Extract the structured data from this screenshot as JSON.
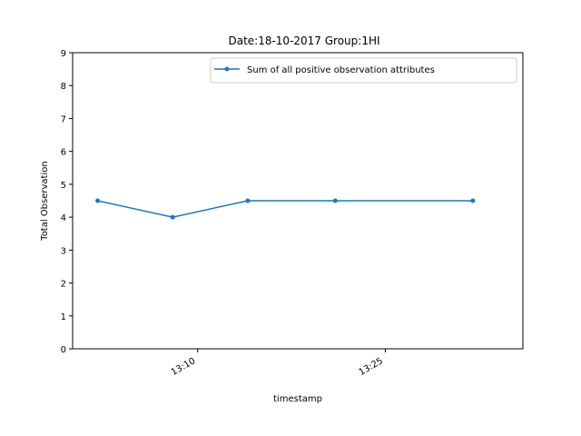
{
  "chart_data": {
    "type": "line",
    "title": "Date:18-10-2017  Group:1HI",
    "xlabel": "timestamp",
    "ylabel": "Total Observation",
    "x": [
      "13:02",
      "13:08",
      "13:14",
      "13:21",
      "13:32"
    ],
    "xticks": [
      "13:10",
      "13:25"
    ],
    "ylim": [
      0,
      9
    ],
    "yticks": [
      "0",
      "1",
      "2",
      "3",
      "4",
      "5",
      "6",
      "7",
      "8",
      "9"
    ],
    "series": [
      {
        "name": "Sum of all positive observation attributes",
        "values": [
          4.5,
          4.0,
          4.5,
          4.5,
          4.5
        ],
        "color": "#1f77b4"
      }
    ],
    "legend": "top-right",
    "grid": false
  }
}
